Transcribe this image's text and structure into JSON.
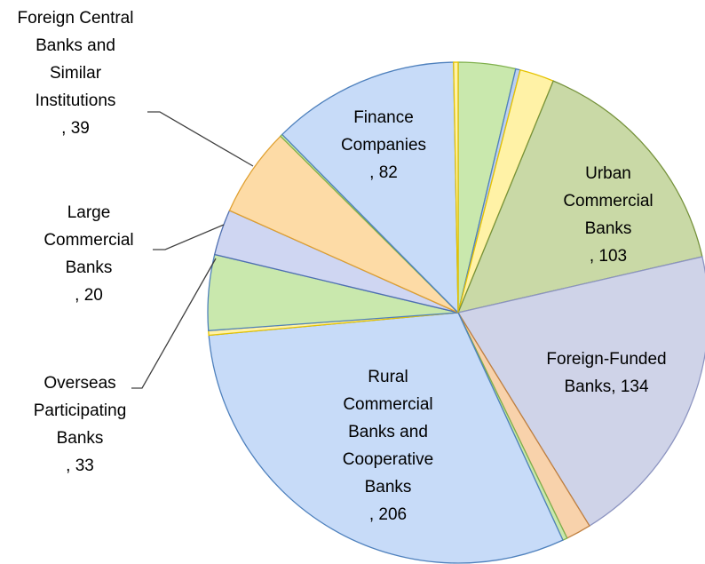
{
  "chart_data": {
    "type": "pie",
    "categories": [
      null,
      null,
      null,
      "Urban Commercial Banks",
      "Foreign-Funded Banks",
      null,
      null,
      "Rural Commercial Banks and Cooperative Banks",
      null,
      "Overseas Participating Banks",
      "Large Commercial Banks",
      "Foreign Central Banks and Similar Institutions",
      null,
      "Finance Companies",
      null
    ],
    "values": [
      25,
      2,
      15,
      103,
      134,
      11,
      2,
      206,
      2,
      33,
      20,
      39,
      1,
      82,
      2
    ],
    "value_labels": [
      null,
      null,
      null,
      ", 103",
      ", 134",
      null,
      null,
      ", 206",
      null,
      ", 33",
      ", 20",
      ", 39",
      null,
      ", 82",
      null
    ],
    "colors": [
      "#c9e8ad",
      "#bcd0f2",
      "#fff2a6",
      "#c9d9a6",
      "#cfd3e8",
      "#f8d2ab",
      "#c9e8ad",
      "#c7dbf8",
      "#fff2a6",
      "#c9e8ad",
      "#cfd6f2",
      "#fddba6",
      "#c9e8ad",
      "#c7dbf8",
      "#fff2a6"
    ],
    "border_colors": [
      "#7fb04c",
      "#4f81bd",
      "#e6c300",
      "#76923c",
      "#8c94c0",
      "#c08040",
      "#7fb04c",
      "#4f81bd",
      "#e6c300",
      "#4f81bd",
      "#4f6fb0",
      "#e0a030",
      "#7fb04c",
      "#4f81bd",
      "#e6c300"
    ]
  }
}
